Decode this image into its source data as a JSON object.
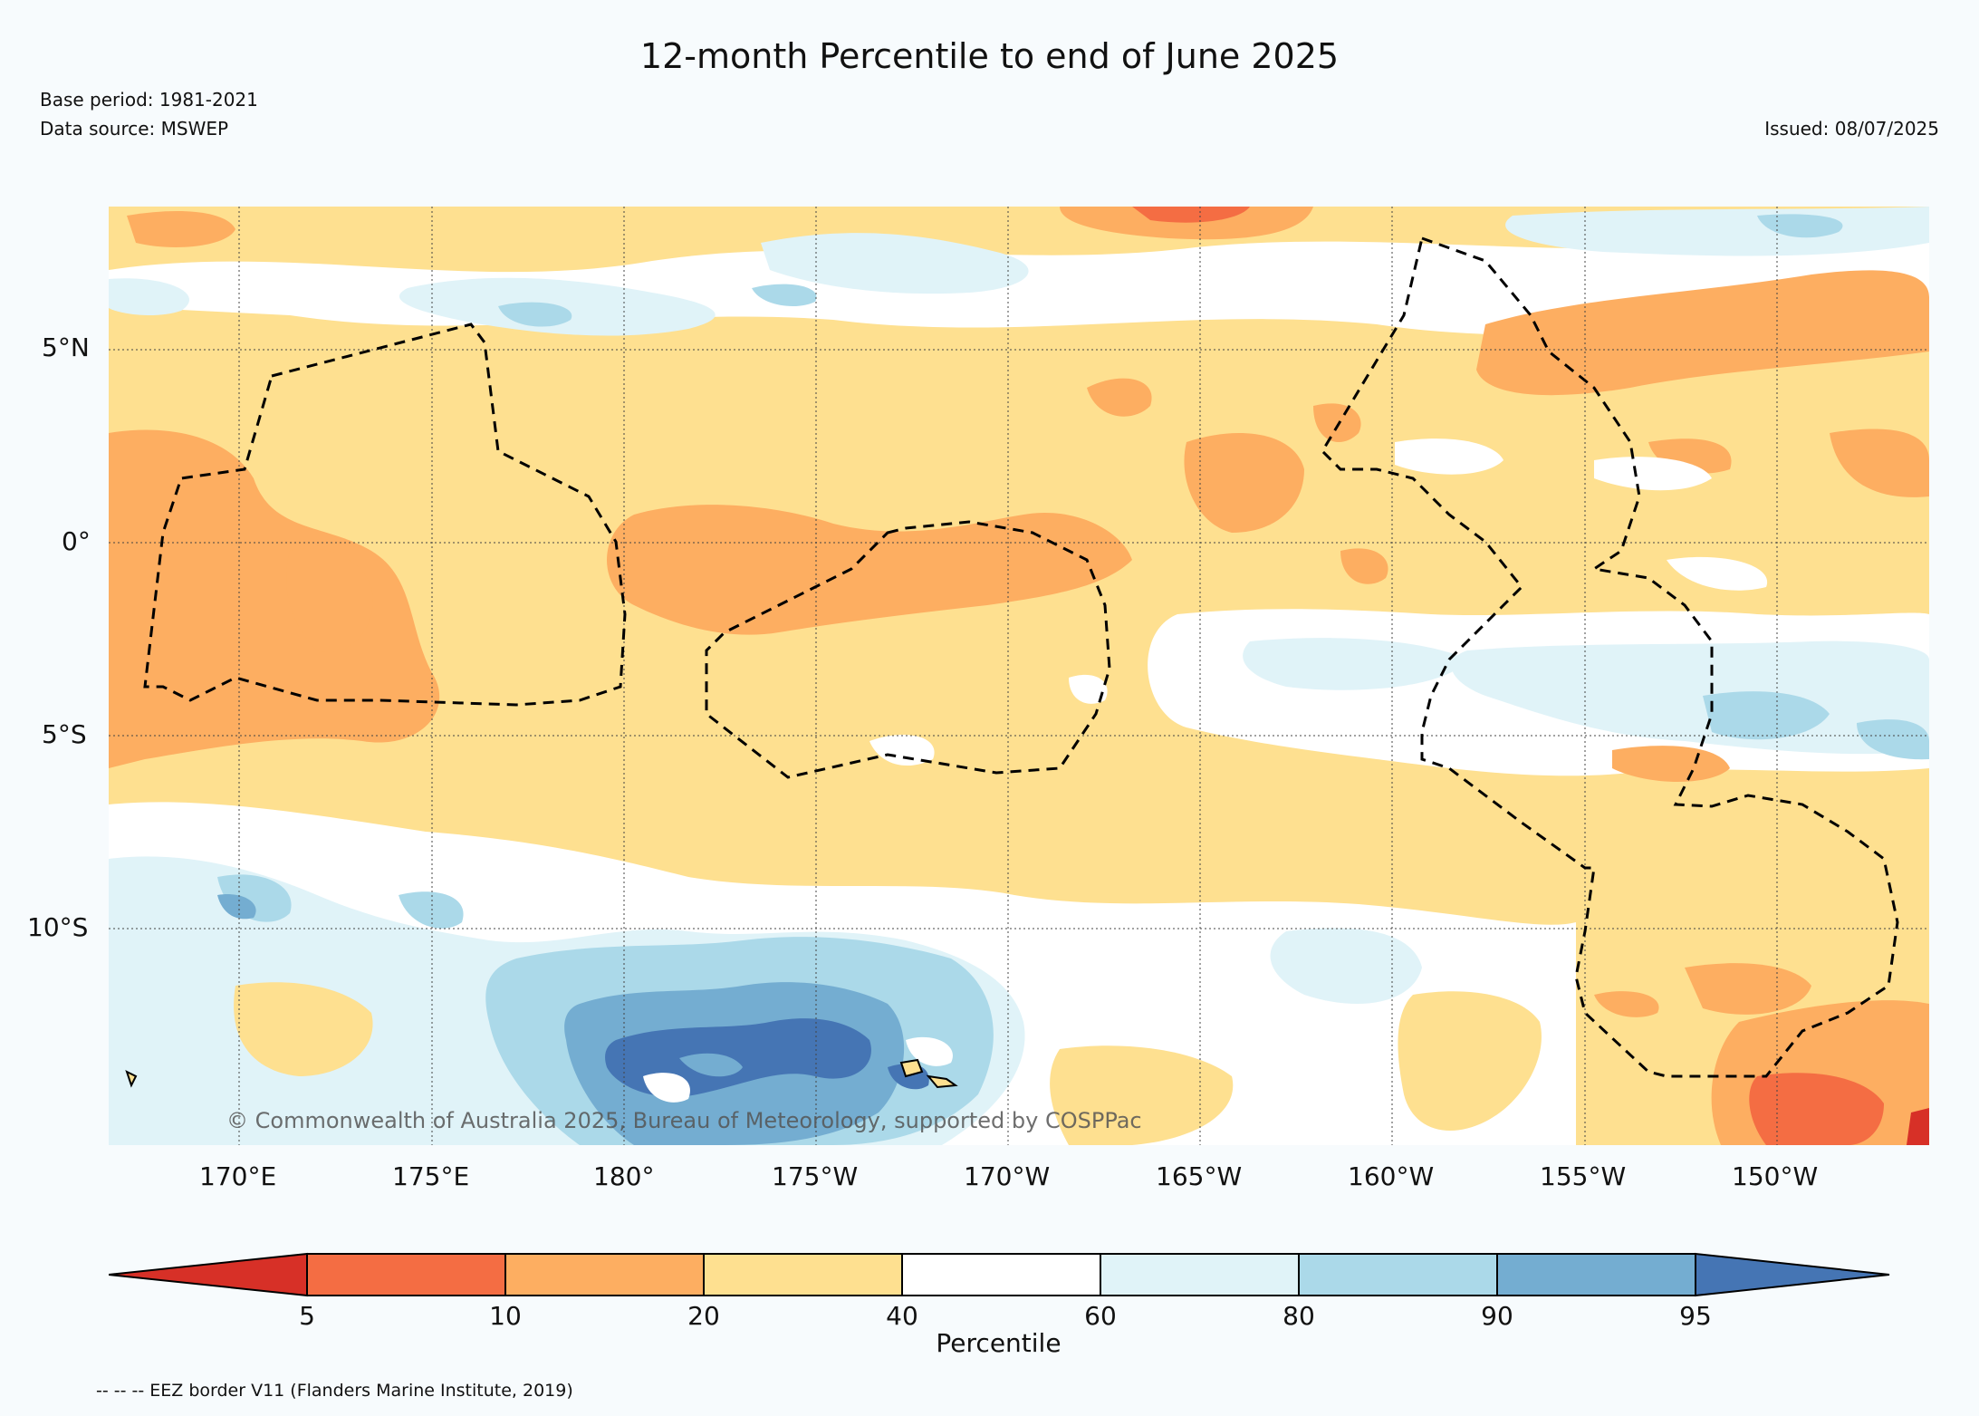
{
  "header": {
    "title": "12-month Percentile to end of June 2025",
    "base_period": "Base period: 1981-2021",
    "data_source": "Data source: MSWEP",
    "issued": "Issued: 08/07/2025"
  },
  "map": {
    "lat_labels": [
      "5°N",
      "0°",
      "5°S",
      "10°S"
    ],
    "lon_labels": [
      "170°E",
      "175°E",
      "180°",
      "175°W",
      "170°W",
      "165°W",
      "160°W",
      "155°W",
      "150°W"
    ],
    "copyright": "© Commonwealth of Australia 2025, Bureau of Meteorology, supported by COSPPac"
  },
  "legend": {
    "ticks": [
      "5",
      "10",
      "20",
      "40",
      "60",
      "80",
      "90",
      "95"
    ],
    "label": "Percentile",
    "colors": [
      "#d73027",
      "#f46d43",
      "#fdae61",
      "#fee090",
      "#ffffff",
      "#e0f3f8",
      "#abd9e9",
      "#74add1",
      "#4575b4"
    ]
  },
  "footer": {
    "eez_note": "-- -- -- EEZ border V11 (Flanders Marine Institute, 2019)"
  }
}
